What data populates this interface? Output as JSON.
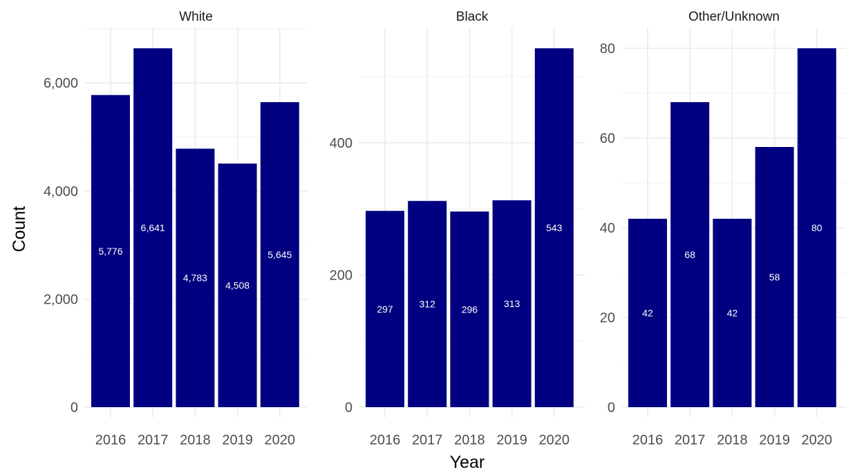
{
  "chart_data": {
    "type": "bar",
    "xlabel": "Year",
    "ylabel": "Count",
    "bar_color": "#000080",
    "grid": true,
    "categories": [
      "2016",
      "2017",
      "2018",
      "2019",
      "2020"
    ],
    "panels": [
      {
        "title": "White",
        "values": [
          5776,
          6641,
          4783,
          4508,
          5645
        ],
        "value_labels": [
          "5,776",
          "6,641",
          "4,783",
          "4,508",
          "5,645"
        ],
        "ylim": [
          0,
          6641
        ],
        "yticks": [
          0,
          2000,
          4000,
          6000
        ],
        "ytick_labels": [
          "0",
          "2,000",
          "4,000",
          "6,000"
        ]
      },
      {
        "title": "Black",
        "values": [
          297,
          312,
          296,
          313,
          543
        ],
        "value_labels": [
          "297",
          "312",
          "296",
          "313",
          "543"
        ],
        "ylim": [
          0,
          543
        ],
        "yticks": [
          0,
          200,
          400
        ],
        "ytick_labels": [
          "0",
          "200",
          "400"
        ]
      },
      {
        "title": "Other/Unknown",
        "values": [
          42,
          68,
          42,
          58,
          80
        ],
        "value_labels": [
          "42",
          "68",
          "42",
          "58",
          "80"
        ],
        "ylim": [
          0,
          80
        ],
        "yticks": [
          0,
          20,
          40,
          60,
          80
        ],
        "ytick_labels": [
          "0",
          "20",
          "40",
          "60",
          "80"
        ]
      }
    ]
  }
}
